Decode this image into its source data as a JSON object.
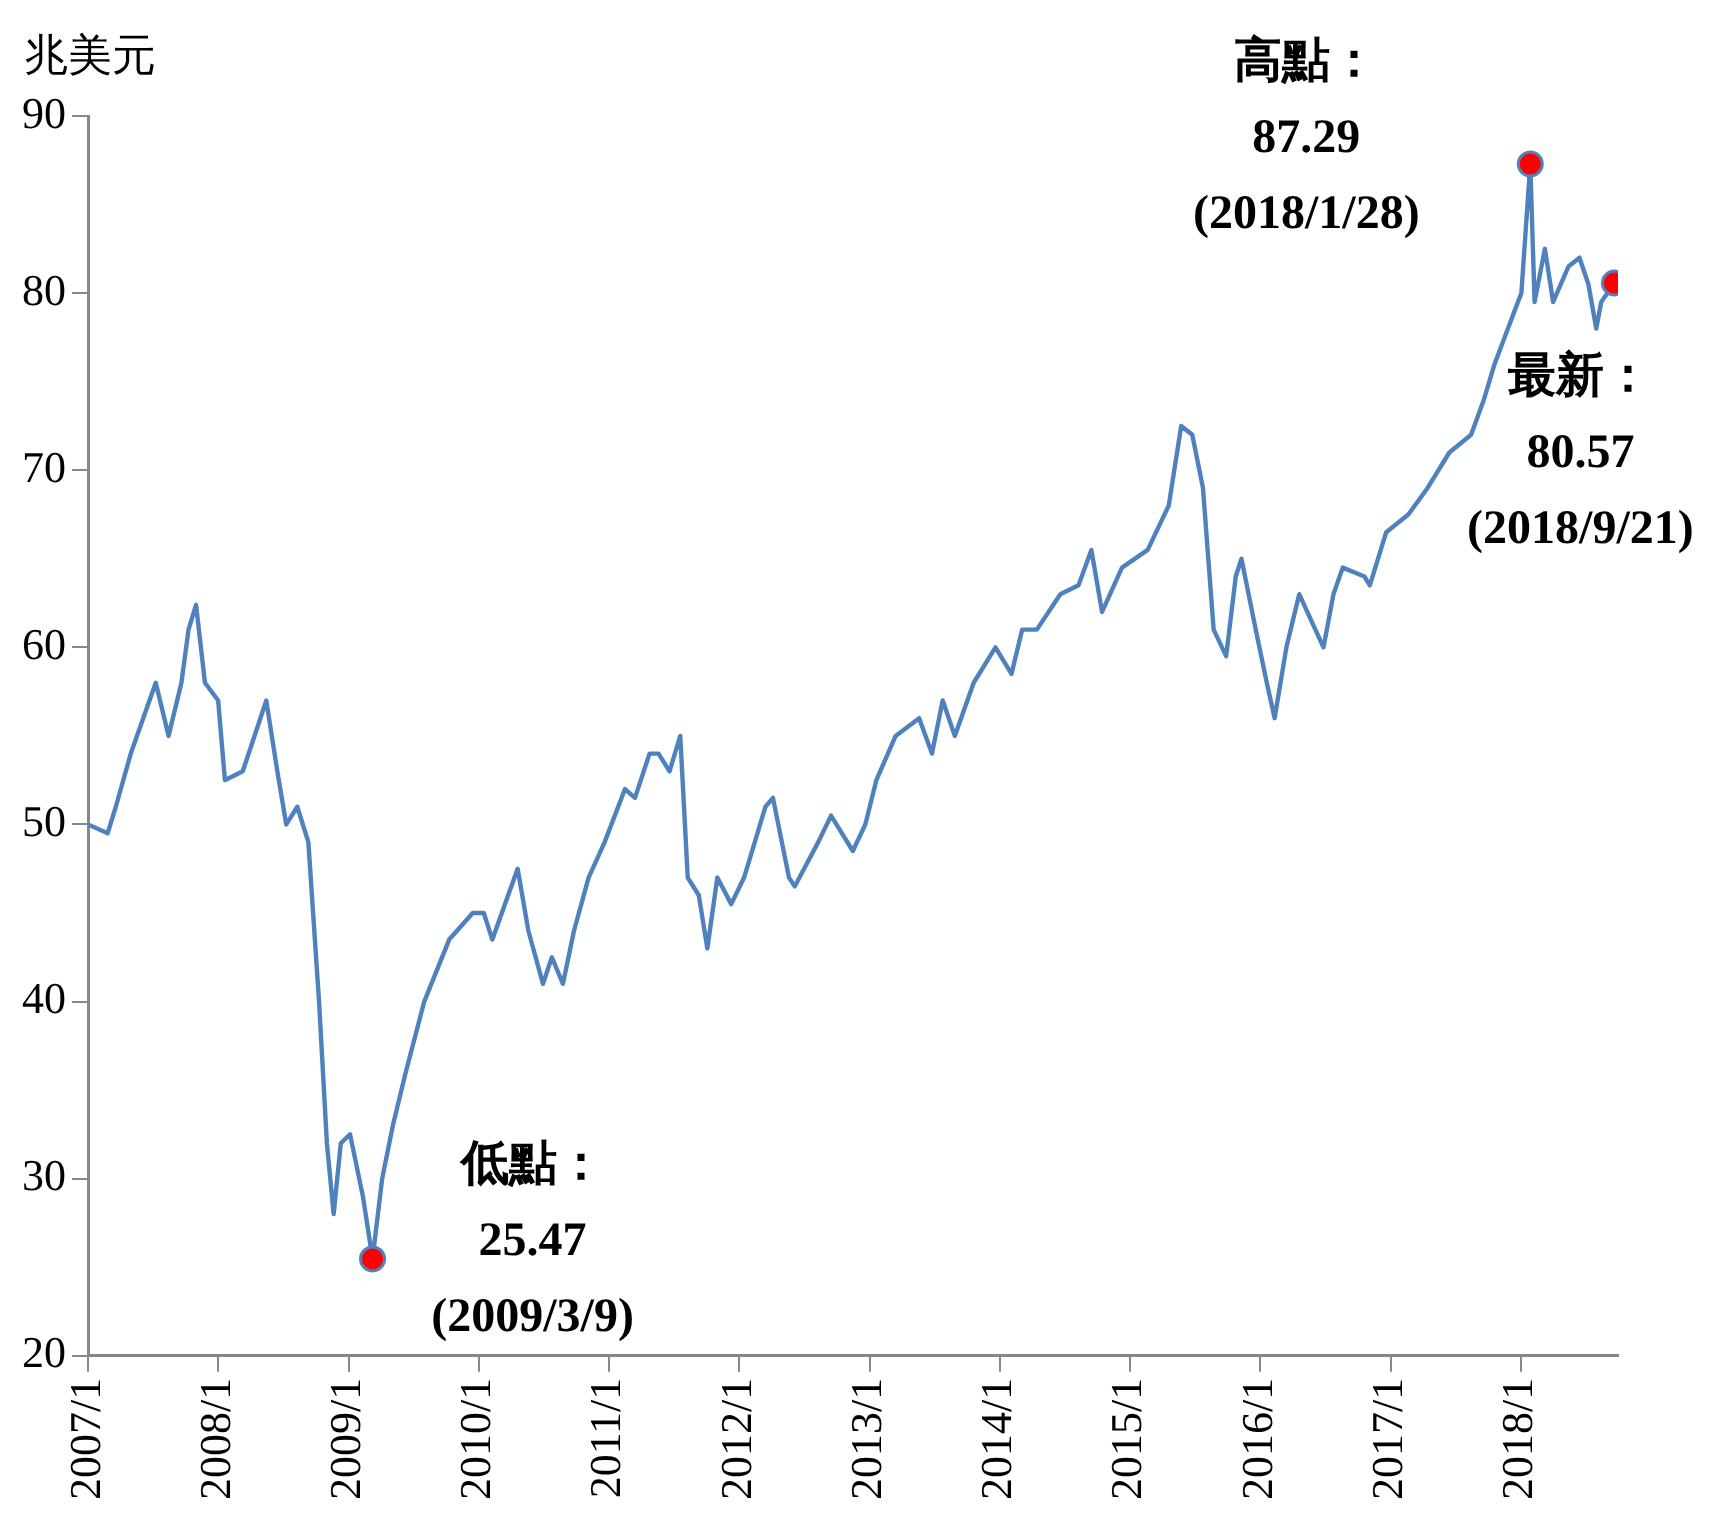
{
  "chart_data": {
    "type": "line",
    "ylabel": "兆美元",
    "x": [
      "2007-01-01",
      "2007-02-25",
      "2007-03-20",
      "2007-05-01",
      "2007-07-10",
      "2007-08-15",
      "2007-09-20",
      "2007-10-10",
      "2007-10-31",
      "2007-11-25",
      "2008-01-01",
      "2008-01-20",
      "2008-03-10",
      "2008-05-15",
      "2008-06-15",
      "2008-07-10",
      "2008-08-10",
      "2008-09-10",
      "2008-10-10",
      "2008-11-01",
      "2008-11-20",
      "2008-12-10",
      "2009-01-05",
      "2009-02-10",
      "2009-03-09",
      "2009-04-05",
      "2009-05-05",
      "2009-06-10",
      "2009-08-01",
      "2009-10-10",
      "2009-12-15",
      "2010-01-15",
      "2010-02-08",
      "2010-04-20",
      "2010-05-20",
      "2010-06-30",
      "2010-07-25",
      "2010-08-25",
      "2010-09-25",
      "2010-11-05",
      "2010-12-20",
      "2011-02-15",
      "2011-03-15",
      "2011-04-25",
      "2011-05-20",
      "2011-06-20",
      "2011-07-20",
      "2011-08-10",
      "2011-09-10",
      "2011-10-04",
      "2011-11-01",
      "2011-12-10",
      "2012-01-15",
      "2012-03-15",
      "2012-04-05",
      "2012-05-20",
      "2012-06-05",
      "2012-08-10",
      "2012-09-15",
      "2012-11-15",
      "2012-12-20",
      "2013-01-20",
      "2013-03-15",
      "2013-05-20",
      "2013-06-25",
      "2013-07-25",
      "2013-08-28",
      "2013-10-20",
      "2013-12-20",
      "2014-02-03",
      "2014-03-05",
      "2014-04-15",
      "2014-06-20",
      "2014-08-10",
      "2014-09-15",
      "2014-10-15",
      "2014-12-10",
      "2015-02-20",
      "2015-04-20",
      "2015-05-25",
      "2015-06-25",
      "2015-07-25",
      "2015-08-24",
      "2015-09-28",
      "2015-10-25",
      "2015-11-10",
      "2015-12-20",
      "2016-01-20",
      "2016-02-11",
      "2016-03-15",
      "2016-04-20",
      "2016-06-27",
      "2016-07-25",
      "2016-08-20",
      "2016-10-20",
      "2016-11-04",
      "2016-12-20",
      "2017-02-20",
      "2017-04-15",
      "2017-06-15",
      "2017-08-15",
      "2017-09-20",
      "2017-10-20",
      "2017-12-15",
      "2018-01-03",
      "2018-01-28",
      "2018-02-09",
      "2018-03-10",
      "2018-04-02",
      "2018-05-15",
      "2018-06-15",
      "2018-07-10",
      "2018-08-01",
      "2018-08-15",
      "2018-09-21"
    ],
    "series": [
      {
        "color": "#4f81bd",
        "values": [
          50,
          49.5,
          51,
          54,
          58,
          55,
          58,
          61,
          62.4,
          58,
          57,
          52.5,
          53,
          57,
          53,
          50,
          51,
          49,
          40,
          32,
          28,
          32,
          32.5,
          29,
          25.47,
          30,
          33,
          36,
          40,
          43.5,
          45,
          45,
          43.5,
          47.5,
          44,
          41,
          42.5,
          41,
          44,
          47,
          49,
          52,
          51.5,
          54,
          54,
          53,
          55,
          47,
          46,
          43,
          47,
          45.5,
          47,
          51,
          51.5,
          47,
          46.5,
          49,
          50.5,
          48.5,
          50,
          52.5,
          55,
          56,
          54,
          57,
          55,
          58,
          60,
          58.5,
          61,
          61,
          63,
          63.5,
          65.5,
          62,
          64.5,
          65.5,
          68,
          72.5,
          72,
          69,
          61,
          59.5,
          64,
          65,
          61,
          58,
          56,
          60,
          63,
          60,
          63,
          64.5,
          64,
          63.5,
          66.5,
          67.5,
          69,
          71,
          72,
          74,
          76,
          79,
          80,
          87.29,
          79.5,
          82.5,
          79.5,
          81.5,
          82,
          80.5,
          78,
          79.5,
          80.57
        ]
      },
      {
        "type": "scatter",
        "color": "#ff0000",
        "marker": "circle",
        "x": [
          "2009-03-09",
          "2018-01-28",
          "2018-09-21"
        ],
        "values": [
          25.47,
          87.29,
          80.57
        ]
      }
    ],
    "xlim": [
      "2007-01-01",
      "2018-10-01"
    ],
    "xticks": [
      {
        "value": "2007-01-01",
        "label": "2007/1"
      },
      {
        "value": "2008-01-01",
        "label": "2008/1"
      },
      {
        "value": "2009-01-01",
        "label": "2009/1"
      },
      {
        "value": "2010-01-01",
        "label": "2010/1"
      },
      {
        "value": "2011-01-01",
        "label": "2011/1"
      },
      {
        "value": "2012-01-01",
        "label": "2012/1"
      },
      {
        "value": "2013-01-01",
        "label": "2013/1"
      },
      {
        "value": "2014-01-01",
        "label": "2014/1"
      },
      {
        "value": "2015-01-01",
        "label": "2015/1"
      },
      {
        "value": "2016-01-01",
        "label": "2016/1"
      },
      {
        "value": "2017-01-01",
        "label": "2017/1"
      },
      {
        "value": "2018-01-01",
        "label": "2018/1"
      }
    ],
    "ylim": [
      20,
      90
    ],
    "yticks": [
      20,
      30,
      40,
      50,
      60,
      70,
      80,
      90
    ],
    "grid": false,
    "legend": false,
    "annotations": [
      {
        "text": "低點：\n25.47\n(2009/3/9)",
        "x": "2009-03-09",
        "y": 25.47
      },
      {
        "text": "高點：\n87.29\n(2018/1/28)",
        "x": "2018-01-28",
        "y": 87.29
      },
      {
        "text": "最新：\n80.57\n(2018/9/21)",
        "x": "2018-09-21",
        "y": 80.57
      }
    ]
  }
}
